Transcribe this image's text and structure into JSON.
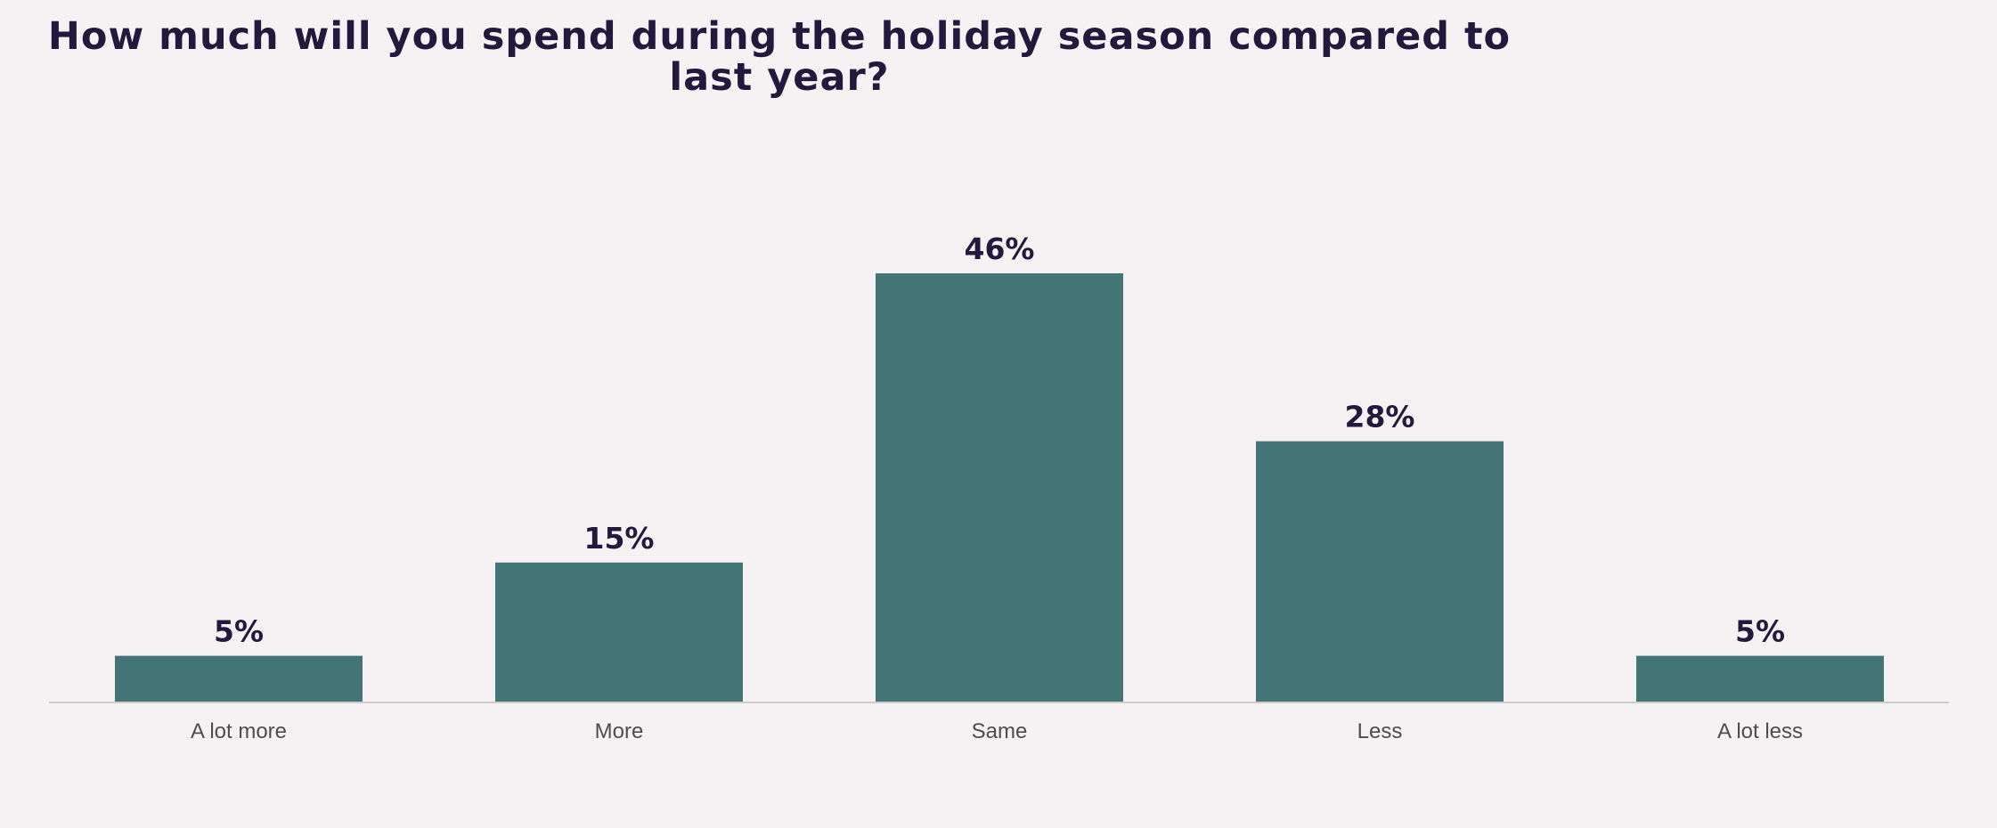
{
  "chart_data": {
    "type": "bar",
    "title": "How much will you spend during the holiday season compared to last year?",
    "categories": [
      "A lot more",
      "More",
      "Same",
      "Less",
      "A lot less"
    ],
    "values": [
      5,
      15,
      46,
      28,
      5
    ],
    "value_labels": [
      "5%",
      "15%",
      "46%",
      "28%",
      "5%"
    ],
    "xlabel": "",
    "ylabel": "",
    "ylim": [
      0,
      50
    ],
    "grid": false,
    "legend": "none",
    "colors": {
      "bar": "#437476",
      "text": "#221a3c",
      "background": "#f6f2f3"
    }
  }
}
